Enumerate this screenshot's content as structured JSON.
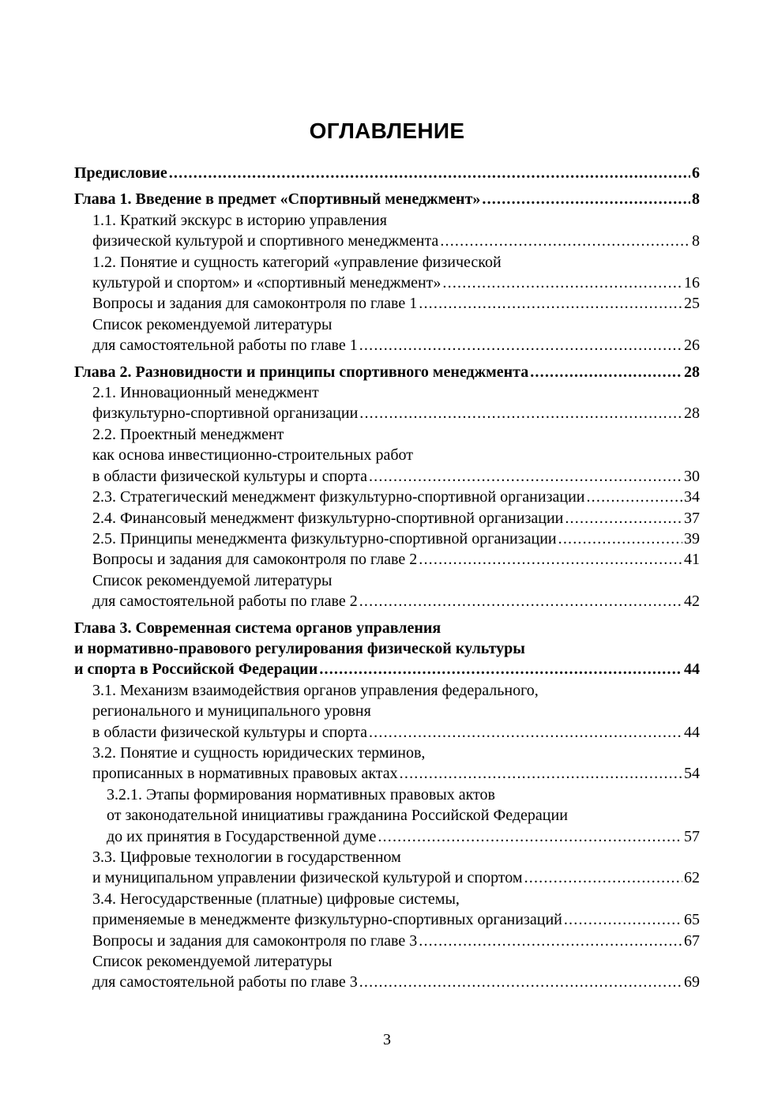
{
  "title": "ОГЛАВЛЕНИЕ",
  "page_number": "3",
  "entries": [
    {
      "level": 0,
      "lines": [
        "Предисловие"
      ],
      "page": "6"
    },
    {
      "level": 0,
      "lines": [
        "Глава 1. Введение в предмет «Спортивный менеджмент»"
      ],
      "page": "8"
    },
    {
      "level": 1,
      "lines": [
        "1.1. Краткий экскурс в историю управления",
        "физической культурой и спортивного менеджмента"
      ],
      "page": "8"
    },
    {
      "level": 1,
      "lines": [
        "1.2. Понятие и сущность категорий «управление физической",
        "культурой и спортом» и «спортивный менеджмент»"
      ],
      "page": "16"
    },
    {
      "level": 1,
      "lines": [
        "Вопросы и задания для самоконтроля по главе 1"
      ],
      "page": "25"
    },
    {
      "level": 1,
      "lines": [
        "Список рекомендуемой литературы",
        "для самостоятельной работы по главе 1"
      ],
      "page": "26"
    },
    {
      "level": 0,
      "lines": [
        "Глава 2. Разновидности и принципы спортивного менеджмента"
      ],
      "page": "28"
    },
    {
      "level": 1,
      "lines": [
        "2.1. Инновационный менеджмент",
        "физкультурно-спортивной организации"
      ],
      "page": "28"
    },
    {
      "level": 1,
      "lines": [
        "2.2. Проектный менеджмент",
        "как основа инвестиционно-строительных работ",
        "в области физической культуры и спорта"
      ],
      "page": "30"
    },
    {
      "level": 1,
      "lines": [
        "2.3. Стратегический менеджмент физкультурно-спортивной организации"
      ],
      "page": "34"
    },
    {
      "level": 1,
      "lines": [
        "2.4. Финансовый менеджмент физкультурно-спортивной организации"
      ],
      "page": "37"
    },
    {
      "level": 1,
      "lines": [
        "2.5. Принципы менеджмента физкультурно-спортивной организации"
      ],
      "page": "39"
    },
    {
      "level": 1,
      "lines": [
        "Вопросы и задания для самоконтроля по главе 2"
      ],
      "page": "41"
    },
    {
      "level": 1,
      "lines": [
        "Список рекомендуемой литературы",
        "для самостоятельной работы по главе 2"
      ],
      "page": "42"
    },
    {
      "level": 0,
      "lines": [
        "Глава 3. Современная система органов управления",
        "и нормативно-правового регулирования физической культуры",
        "и спорта в Российской Федерации"
      ],
      "page": "44"
    },
    {
      "level": 1,
      "lines": [
        "3.1. Механизм взаимодействия органов управления федерального,",
        "регионального и муниципального уровня",
        "в области физической культуры и спорта"
      ],
      "page": "44"
    },
    {
      "level": 1,
      "lines": [
        "3.2. Понятие и сущность юридических терминов,",
        "прописанных в нормативных правовых актах"
      ],
      "page": "54"
    },
    {
      "level": 2,
      "lines": [
        "3.2.1. Этапы формирования нормативных правовых актов",
        "от законодательной инициативы гражданина Российской Федерации",
        "до их принятия в Государственной думе"
      ],
      "page": "57"
    },
    {
      "level": 1,
      "lines": [
        "3.3. Цифровые технологии в государственном",
        "и муниципальном управлении физической культурой и спортом"
      ],
      "page": "62"
    },
    {
      "level": 1,
      "lines": [
        "3.4. Негосударственные (платные) цифровые системы,",
        "применяемые в менеджменте физкультурно-спортивных организаций"
      ],
      "page": "65"
    },
    {
      "level": 1,
      "lines": [
        "Вопросы и задания для самоконтроля по главе 3"
      ],
      "page": "67"
    },
    {
      "level": 1,
      "lines": [
        "Список рекомендуемой литературы",
        "для самостоятельной работы по главе 3"
      ],
      "page": "69"
    }
  ]
}
